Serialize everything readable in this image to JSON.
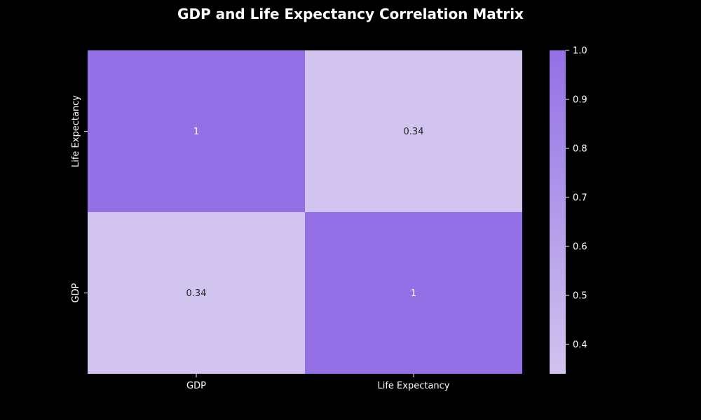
{
  "chart_data": {
    "type": "heatmap",
    "title": "GDP and Life Expectancy Correlation Matrix",
    "x_categories": [
      "GDP",
      "Life Expectancy"
    ],
    "y_categories_top_to_bottom": [
      "Life Expectancy",
      "GDP"
    ],
    "matrix": [
      [
        1.0,
        0.34
      ],
      [
        0.34,
        1.0
      ]
    ],
    "cell_labels": [
      [
        "1",
        "0.34"
      ],
      [
        "0.34",
        "1"
      ]
    ],
    "colorbar": {
      "range": [
        0.34,
        1.0
      ],
      "ticks": [
        "0.4",
        "0.5",
        "0.6",
        "0.7",
        "0.8",
        "0.9",
        "1.0"
      ],
      "color_low": "#d1c4ee",
      "color_high": "#9370e6"
    },
    "xlabel": "",
    "ylabel": "",
    "background": "#000000",
    "text_color": "#ffffff",
    "dark_text_color": "#262626"
  }
}
